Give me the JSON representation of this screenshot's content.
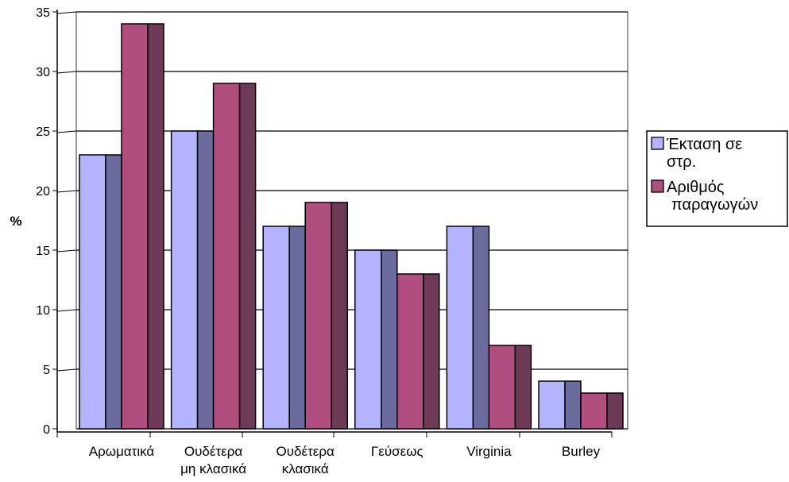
{
  "chart_data": {
    "type": "bar",
    "title": "",
    "xlabel": "",
    "ylabel": "%",
    "ylim": [
      0,
      35
    ],
    "yticks": [
      0,
      5,
      10,
      15,
      20,
      25,
      30,
      35
    ],
    "grid": true,
    "legend_position": "right",
    "categories": [
      [
        "Αρωματικά"
      ],
      [
        "Ουδέτερα",
        "μη κλασικά"
      ],
      [
        "Ουδέτερα",
        "κλασικά"
      ],
      [
        "Γεύσεως"
      ],
      [
        "Virginia"
      ],
      [
        "Burley"
      ]
    ],
    "series": [
      {
        "name": [
          "Έκταση σε",
          "στρ."
        ],
        "values": [
          23,
          25,
          17,
          15,
          17,
          4
        ],
        "color": "#b3b3ff",
        "depth_color": "#6b6b9e"
      },
      {
        "name": [
          "Αριθμός",
          "παραγωγών"
        ],
        "values": [
          34,
          29,
          19,
          13,
          7,
          3
        ],
        "color": "#b04e7e",
        "depth_color": "#6e3a56"
      }
    ]
  }
}
